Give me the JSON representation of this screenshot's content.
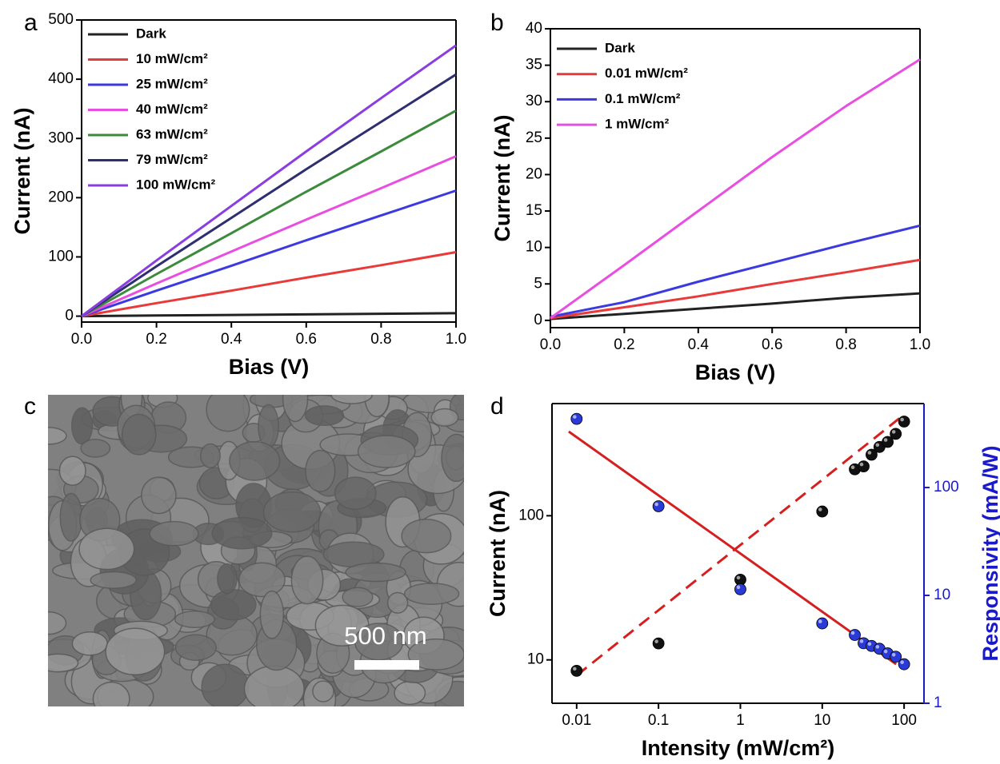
{
  "chart_data": [
    {
      "type": "line",
      "panel_label": "a",
      "xlabel": "Bias (V)",
      "ylabel": "Current (nA)",
      "x": [
        0,
        0.2,
        0.4,
        0.6,
        0.8,
        1.0
      ],
      "xlim": [
        0,
        1
      ],
      "xticks": [
        {
          "value": 0,
          "label": "0.0"
        },
        0.2,
        0.4,
        0.6,
        0.8,
        {
          "value": 1,
          "label": "1.0"
        }
      ],
      "ylim": [
        -10,
        500
      ],
      "yticks": [
        0,
        100,
        200,
        300,
        400,
        500
      ],
      "legend": "upper left",
      "series": [
        {
          "name": "Dark",
          "color": "#222222",
          "values": [
            0,
            1,
            2,
            3,
            4,
            5
          ]
        },
        {
          "name": "10 mW/cm²",
          "color": "#e83a3a",
          "values": [
            0,
            22,
            43,
            65,
            86,
            108
          ]
        },
        {
          "name": "25 mW/cm²",
          "color": "#3a3ae0",
          "values": [
            0,
            43,
            85,
            128,
            170,
            212
          ]
        },
        {
          "name": "40 mW/cm²",
          "color": "#e84ee0",
          "values": [
            0,
            55,
            109,
            163,
            216,
            270
          ]
        },
        {
          "name": "63 mW/cm²",
          "color": "#3c8a3c",
          "values": [
            0,
            71,
            140,
            210,
            278,
            347
          ]
        },
        {
          "name": "79 mW/cm²",
          "color": "#2e2e70",
          "values": [
            0,
            84,
            166,
            248,
            328,
            408
          ]
        },
        {
          "name": "100 mW/cm²",
          "color": "#8a3ee0",
          "values": [
            0,
            94,
            186,
            278,
            368,
            457
          ]
        }
      ]
    },
    {
      "type": "line",
      "panel_label": "b",
      "xlabel": "Bias (V)",
      "ylabel": "Current (nA)",
      "x": [
        0,
        0.2,
        0.4,
        0.6,
        0.8,
        1.0
      ],
      "xlim": [
        0,
        1
      ],
      "xticks": [
        {
          "value": 0,
          "label": "0.0"
        },
        0.2,
        0.4,
        0.6,
        0.8,
        {
          "value": 1,
          "label": "1.0"
        }
      ],
      "ylim": [
        -1,
        40
      ],
      "yticks": [
        0,
        5,
        10,
        15,
        20,
        25,
        30,
        35,
        40
      ],
      "legend": "upper left",
      "series": [
        {
          "name": "Dark",
          "color": "#222222",
          "values": [
            0.2,
            0.9,
            1.6,
            2.3,
            3.1,
            3.7
          ]
        },
        {
          "name": "0.01 mW/cm²",
          "color": "#e83a3a",
          "values": [
            0.3,
            1.8,
            3.3,
            5.0,
            6.6,
            8.3
          ]
        },
        {
          "name": "0.1 mW/cm²",
          "color": "#3a3ae0",
          "values": [
            0.5,
            2.5,
            5.3,
            7.9,
            10.5,
            13.0
          ]
        },
        {
          "name": "1 mW/cm²",
          "color": "#e84ee0",
          "values": [
            0.3,
            7.6,
            15.0,
            22.4,
            29.4,
            35.8
          ]
        }
      ]
    },
    {
      "type": "scatter",
      "panel_label": "d",
      "xlabel": "Intensity (mW/cm²)",
      "ylabel": "Current (nA)",
      "y2label": "Responsivity (mA/W)",
      "xscale": "log",
      "yscale": "log",
      "y2scale": "log",
      "x": [
        0.01,
        0.1,
        1,
        10,
        25,
        32,
        40,
        50,
        63,
        79,
        100
      ],
      "xlim": [
        0.005,
        175
      ],
      "xticks": [
        0.01,
        0.1,
        1,
        10,
        100
      ],
      "ylim": [
        5,
        600
      ],
      "yticks": [
        10,
        100
      ],
      "y2lim": [
        1,
        600
      ],
      "y2ticks": [
        1,
        10,
        100
      ],
      "y2color": "#1a1acc",
      "series": [
        {
          "color": "#111111",
          "values": [
            8.4,
            13,
            36,
            107,
            210,
            220,
            265,
            300,
            325,
            370,
            450
          ]
        },
        {
          "color": "#2a3ad8",
          "axis": "y2",
          "values": [
            433,
            67,
            11.4,
            5.5,
            4.3,
            3.6,
            3.4,
            3.2,
            2.9,
            2.7,
            2.3
          ]
        }
      ],
      "fit_lines": [
        {
          "x": [
            0.01,
            90
          ],
          "values": [
            7.8,
            480
          ],
          "color": "#d62020",
          "dashed": true
        },
        {
          "x": [
            0.008,
            80
          ],
          "values": [
            330,
            2.3
          ],
          "axis": "y2",
          "color": "#d62020",
          "dashed": false
        }
      ]
    }
  ],
  "image": {
    "panel_label": "c",
    "scale_bar": "500 nm"
  }
}
